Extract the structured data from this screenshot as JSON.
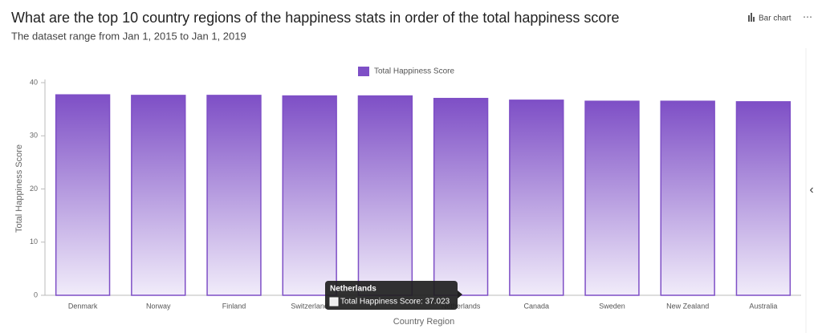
{
  "header": {
    "title": "What are the top 10 country regions of the happiness stats in order of the total happiness score",
    "subtitle": "The dataset range from Jan 1, 2015 to Jan 1, 2019",
    "chart_type_button": "Bar chart",
    "more_button": "⋯",
    "collapse_button": "‹"
  },
  "chart_data": {
    "type": "bar",
    "x_label": "Country Region",
    "y_label": "Total Happiness Score",
    "categories": [
      "Denmark",
      "Norway",
      "Finland",
      "Switzerland",
      null,
      "Netherlands",
      "Canada",
      "Sweden",
      "New Zealand",
      "Australia"
    ],
    "series": [
      {
        "name": "Total Happiness Score",
        "color": "#7e4fc6",
        "values": [
          37.7,
          37.6,
          37.6,
          37.5,
          37.5,
          37.023,
          36.7,
          36.5,
          36.5,
          36.4
        ]
      }
    ],
    "ylim": [
      0,
      40
    ],
    "yticks": [
      0,
      10,
      20,
      30,
      40
    ],
    "grid": false,
    "legend": "top",
    "tooltip": {
      "index": 5,
      "title": "Netherlands",
      "label": "Total Happiness Score: 37.023"
    }
  }
}
